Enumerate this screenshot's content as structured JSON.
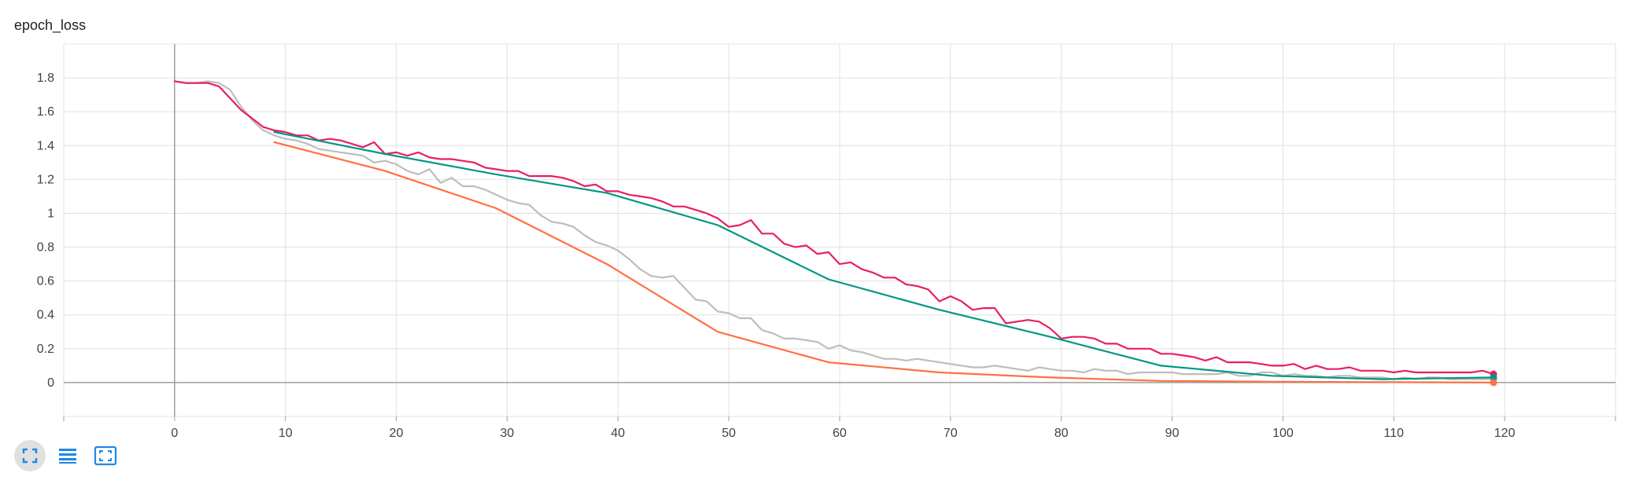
{
  "card": {
    "title": "epoch_loss"
  },
  "toolbar": [
    {
      "name": "toggle-expand-button",
      "icon": "fullscreen-icon"
    },
    {
      "name": "toggle-y-log-button",
      "icon": "list-lines-icon"
    },
    {
      "name": "fit-domain-button",
      "icon": "fit-screen-icon"
    }
  ],
  "chart_data": {
    "type": "line",
    "title": "epoch_loss",
    "xlabel": "",
    "ylabel": "",
    "xlim": [
      -10,
      130
    ],
    "ylim": [
      -0.2,
      2.0
    ],
    "x_ticks": [
      0,
      10,
      20,
      30,
      40,
      50,
      60,
      70,
      80,
      90,
      100,
      110,
      120
    ],
    "y_ticks": [
      0,
      0.2,
      0.4,
      0.6,
      0.8,
      1,
      1.2,
      1.4,
      1.6,
      1.8
    ],
    "grid": true,
    "series": [
      {
        "color": "#bdbdbd",
        "x": [
          0,
          1,
          2,
          3,
          4,
          5,
          6,
          7,
          8,
          9,
          10,
          11,
          12,
          13,
          14,
          15,
          16,
          17,
          18,
          19,
          20,
          21,
          22,
          23,
          24,
          25,
          26,
          27,
          28,
          29,
          30,
          31,
          32,
          33,
          34,
          35,
          36,
          37,
          38,
          39,
          40,
          41,
          42,
          43,
          44,
          45,
          46,
          47,
          48,
          49,
          50,
          51,
          52,
          53,
          54,
          55,
          56,
          57,
          58,
          59,
          60,
          61,
          62,
          63,
          64,
          65,
          66,
          67,
          68,
          69,
          70,
          71,
          72,
          73,
          74,
          75,
          76,
          77,
          78,
          79,
          80,
          81,
          82,
          83,
          84,
          85,
          86,
          87,
          88,
          89,
          90,
          91,
          92,
          93,
          94,
          95,
          96,
          97,
          98,
          99,
          100,
          101,
          102,
          103,
          104,
          105,
          106,
          107,
          108,
          109,
          110,
          111,
          112,
          113,
          114,
          115,
          116,
          117,
          118,
          119
        ],
        "y": [
          1.78,
          1.77,
          1.77,
          1.78,
          1.77,
          1.73,
          1.63,
          1.55,
          1.49,
          1.46,
          1.44,
          1.43,
          1.41,
          1.38,
          1.37,
          1.36,
          1.35,
          1.34,
          1.3,
          1.31,
          1.29,
          1.25,
          1.23,
          1.26,
          1.18,
          1.21,
          1.16,
          1.16,
          1.14,
          1.11,
          1.08,
          1.06,
          1.05,
          0.99,
          0.95,
          0.94,
          0.92,
          0.87,
          0.83,
          0.81,
          0.78,
          0.73,
          0.67,
          0.63,
          0.62,
          0.63,
          0.56,
          0.49,
          0.48,
          0.42,
          0.41,
          0.38,
          0.38,
          0.31,
          0.29,
          0.26,
          0.26,
          0.25,
          0.24,
          0.2,
          0.22,
          0.19,
          0.18,
          0.16,
          0.14,
          0.14,
          0.13,
          0.14,
          0.13,
          0.12,
          0.11,
          0.1,
          0.09,
          0.09,
          0.1,
          0.09,
          0.08,
          0.07,
          0.09,
          0.08,
          0.07,
          0.07,
          0.06,
          0.08,
          0.07,
          0.07,
          0.05,
          0.06,
          0.06,
          0.06,
          0.06,
          0.05,
          0.05,
          0.05,
          0.05,
          0.06,
          0.04,
          0.04,
          0.06,
          0.06,
          0.04,
          0.05,
          0.04,
          0.04,
          0.03,
          0.04,
          0.04,
          0.03,
          0.03,
          0.03,
          0.02,
          0.03,
          0.02,
          0.03,
          0.03,
          0.02,
          0.02,
          0.02,
          0.02,
          0.02
        ]
      },
      {
        "color": "#e91e63",
        "x": [
          0,
          1,
          2,
          3,
          4,
          5,
          6,
          7,
          8,
          9,
          10,
          11,
          12,
          13,
          14,
          15,
          16,
          17,
          18,
          19,
          20,
          21,
          22,
          23,
          24,
          25,
          26,
          27,
          28,
          29,
          30,
          31,
          32,
          33,
          34,
          35,
          36,
          37,
          38,
          39,
          40,
          41,
          42,
          43,
          44,
          45,
          46,
          47,
          48,
          49,
          50,
          51,
          52,
          53,
          54,
          55,
          56,
          57,
          58,
          59,
          60,
          61,
          62,
          63,
          64,
          65,
          66,
          67,
          68,
          69,
          70,
          71,
          72,
          73,
          74,
          75,
          76,
          77,
          78,
          79,
          80,
          81,
          82,
          83,
          84,
          85,
          86,
          87,
          88,
          89,
          90,
          91,
          92,
          93,
          94,
          95,
          96,
          97,
          98,
          99,
          100,
          101,
          102,
          103,
          104,
          105,
          106,
          107,
          108,
          109,
          110,
          111,
          112,
          113,
          114,
          115,
          116,
          117,
          118,
          119
        ],
        "y": [
          1.78,
          1.77,
          1.77,
          1.77,
          1.75,
          1.68,
          1.61,
          1.56,
          1.51,
          1.49,
          1.48,
          1.46,
          1.46,
          1.43,
          1.44,
          1.43,
          1.41,
          1.39,
          1.42,
          1.35,
          1.36,
          1.34,
          1.36,
          1.33,
          1.32,
          1.32,
          1.31,
          1.3,
          1.27,
          1.26,
          1.25,
          1.25,
          1.22,
          1.22,
          1.22,
          1.21,
          1.19,
          1.16,
          1.17,
          1.13,
          1.13,
          1.11,
          1.1,
          1.09,
          1.07,
          1.04,
          1.04,
          1.02,
          1.0,
          0.97,
          0.92,
          0.93,
          0.96,
          0.88,
          0.88,
          0.82,
          0.8,
          0.81,
          0.76,
          0.77,
          0.7,
          0.71,
          0.67,
          0.65,
          0.62,
          0.62,
          0.58,
          0.57,
          0.55,
          0.48,
          0.51,
          0.48,
          0.43,
          0.44,
          0.44,
          0.35,
          0.36,
          0.37,
          0.36,
          0.32,
          0.26,
          0.27,
          0.27,
          0.26,
          0.23,
          0.23,
          0.2,
          0.2,
          0.2,
          0.17,
          0.17,
          0.16,
          0.15,
          0.13,
          0.15,
          0.12,
          0.12,
          0.12,
          0.11,
          0.1,
          0.1,
          0.11,
          0.08,
          0.1,
          0.08,
          0.08,
          0.09,
          0.07,
          0.07,
          0.07,
          0.06,
          0.07,
          0.06,
          0.06,
          0.06,
          0.06,
          0.06,
          0.06,
          0.07,
          0.05
        ]
      },
      {
        "color": "#009688",
        "x": [
          9,
          19,
          29,
          39,
          49,
          59,
          69,
          79,
          89,
          99,
          109,
          119
        ],
        "y": [
          1.48,
          1.35,
          1.23,
          1.12,
          0.93,
          0.61,
          0.43,
          0.27,
          0.1,
          0.04,
          0.02,
          0.03
        ]
      },
      {
        "color": "#ff7043",
        "x": [
          9,
          19,
          29,
          39,
          49,
          59,
          69,
          79,
          89,
          99,
          109,
          119
        ],
        "y": [
          1.42,
          1.25,
          1.03,
          0.7,
          0.3,
          0.12,
          0.06,
          0.03,
          0.01,
          0.005,
          0.003,
          0.0
        ]
      }
    ]
  }
}
